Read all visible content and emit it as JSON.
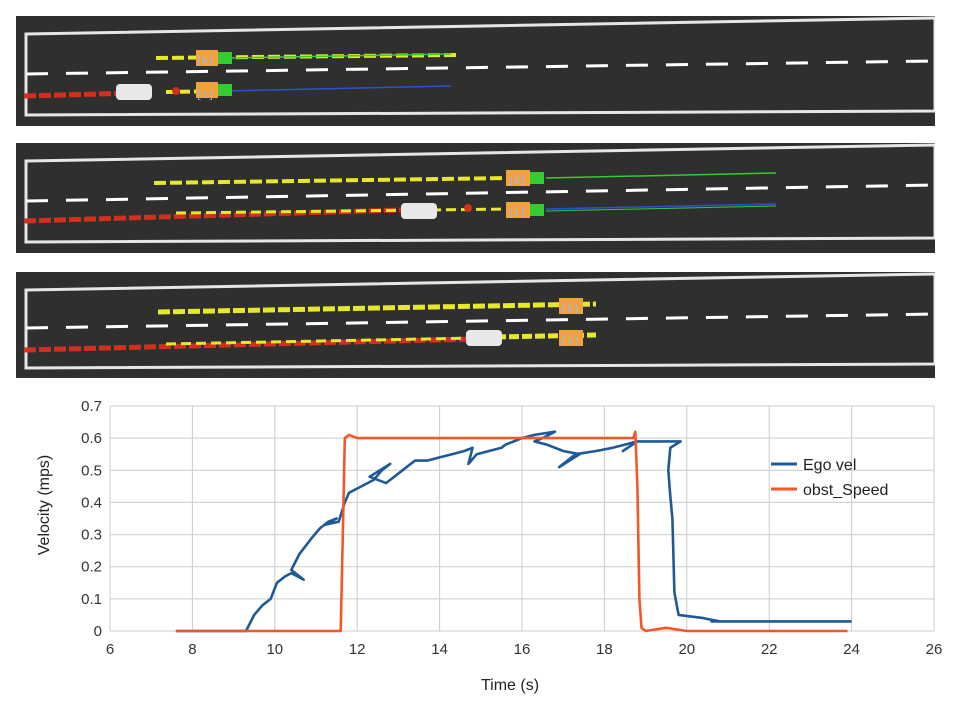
{
  "scenes": [
    {
      "labels": [
        "[0]",
        "[1]"
      ]
    },
    {
      "labels": [
        "[0]",
        "[1]"
      ]
    },
    {
      "labels": [
        "[0]",
        "[1]"
      ]
    }
  ],
  "colors": {
    "road": "#2f2f2f",
    "boundary": "#e6e6e6",
    "trajectory_ego": "#d32f1e",
    "trajectory_obstacle": "#e8e82a",
    "obstacle_box": "#f0a33a",
    "path_green": "#33cc33",
    "path_blue": "#2b4fd6",
    "ego_series": "#1f5a96",
    "obst_series": "#f0582a"
  },
  "chart_data": {
    "type": "line",
    "xlabel": "Time (s)",
    "ylabel": "Velocity (mps)",
    "xlim": [
      6,
      26
    ],
    "ylim": [
      0,
      0.7
    ],
    "xticks": [
      6,
      8,
      10,
      12,
      14,
      16,
      18,
      20,
      22,
      24,
      26
    ],
    "yticks": [
      0,
      0.1,
      0.2,
      0.3,
      0.4,
      0.5,
      0.6,
      0.7
    ],
    "grid": true,
    "legend_position": "right",
    "series": [
      {
        "name": "Ego vel",
        "color": "#1f5a96",
        "x": [
          7.6,
          9.3,
          9.5,
          9.7,
          9.9,
          10.05,
          10.25,
          10.4,
          10.7,
          10.4,
          10.6,
          10.9,
          11.1,
          11.3,
          11.5,
          11.2,
          11.55,
          11.7,
          11.8,
          12.1,
          12.4,
          12.6,
          12.8,
          12.3,
          12.7,
          13.1,
          13.4,
          13.7,
          14.0,
          14.3,
          14.6,
          14.8,
          14.7,
          14.9,
          15.2,
          15.5,
          15.6,
          15.8,
          16.0,
          16.3,
          16.8,
          16.5,
          16.3,
          16.6,
          17.0,
          17.4,
          16.9,
          17.3,
          17.8,
          18.2,
          18.5,
          18.8,
          18.45,
          18.8,
          19.1,
          19.4,
          19.7,
          19.85,
          19.6,
          19.55,
          19.6,
          19.65,
          19.7,
          19.8,
          20.4,
          20.8,
          20.6,
          21.5,
          22.5,
          24.0
        ],
        "y": [
          0.0,
          0.0,
          0.05,
          0.08,
          0.1,
          0.15,
          0.17,
          0.18,
          0.16,
          0.19,
          0.24,
          0.29,
          0.32,
          0.34,
          0.35,
          0.33,
          0.34,
          0.4,
          0.43,
          0.45,
          0.47,
          0.5,
          0.52,
          0.48,
          0.46,
          0.5,
          0.53,
          0.53,
          0.54,
          0.55,
          0.56,
          0.57,
          0.52,
          0.55,
          0.56,
          0.57,
          0.58,
          0.59,
          0.6,
          0.61,
          0.62,
          0.6,
          0.59,
          0.58,
          0.56,
          0.55,
          0.51,
          0.55,
          0.56,
          0.57,
          0.58,
          0.59,
          0.56,
          0.59,
          0.59,
          0.59,
          0.59,
          0.59,
          0.57,
          0.5,
          0.42,
          0.35,
          0.12,
          0.05,
          0.04,
          0.03,
          0.03,
          0.03,
          0.03,
          0.03
        ]
      },
      {
        "name": "obst_Speed",
        "color": "#f0582a",
        "x": [
          7.6,
          11.6,
          11.65,
          11.7,
          11.8,
          12.0,
          16.0,
          18.7,
          18.75,
          18.8,
          18.85,
          18.9,
          19.0,
          19.5,
          20.0,
          21.0,
          23.9
        ],
        "y": [
          0.0,
          0.0,
          0.3,
          0.6,
          0.61,
          0.6,
          0.6,
          0.6,
          0.62,
          0.45,
          0.1,
          0.01,
          0.0,
          0.01,
          0.0,
          0.0,
          0.0
        ]
      }
    ]
  }
}
